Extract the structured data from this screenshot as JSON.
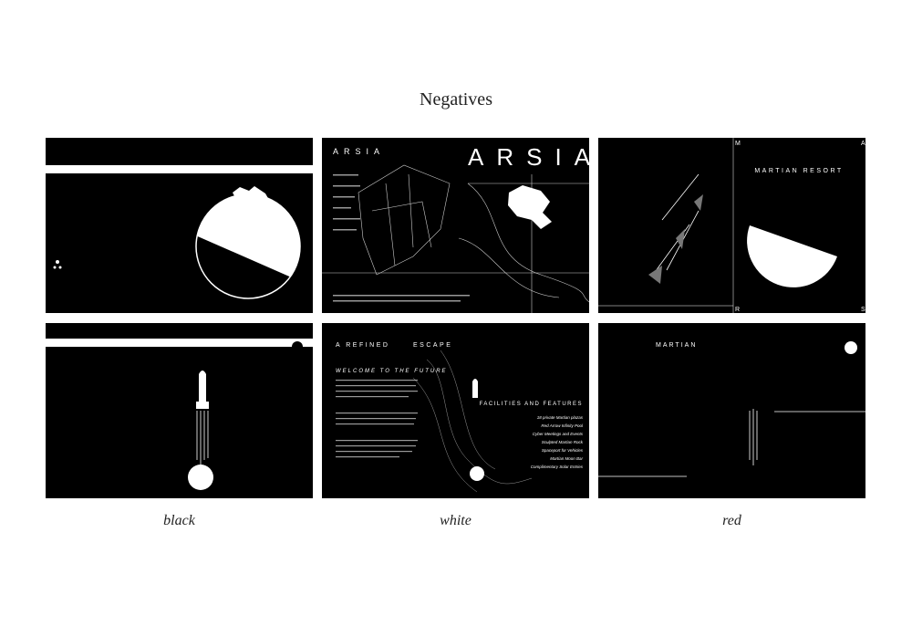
{
  "header": {
    "title": "Negatives"
  },
  "columns": [
    {
      "caption": "black"
    },
    {
      "caption": "white"
    },
    {
      "caption": "red"
    }
  ],
  "thumbnails": {
    "arsia": {
      "small_title": "ARSIA",
      "big_title": "ARSIA"
    },
    "resort": {
      "title": "MARTIAN RESORT",
      "corners": [
        "M",
        "A",
        "R",
        "S"
      ]
    },
    "escape": {
      "heading_left": "A REFINED",
      "heading_right": "ESCAPE",
      "welcome": "WELCOME TO THE FUTURE",
      "features_title": "FACILITIES AND FEATURES",
      "features": [
        "18 private Martian plazas",
        "Red Arrow Infinity Pool",
        "Cyber Meetings and Events",
        "Sculpted Martian Rock",
        "Spaceport for Vehicles",
        "Martian Moon Bar",
        "Complimentary Solar Entries"
      ]
    },
    "martian": {
      "title": "MARTIAN"
    }
  }
}
